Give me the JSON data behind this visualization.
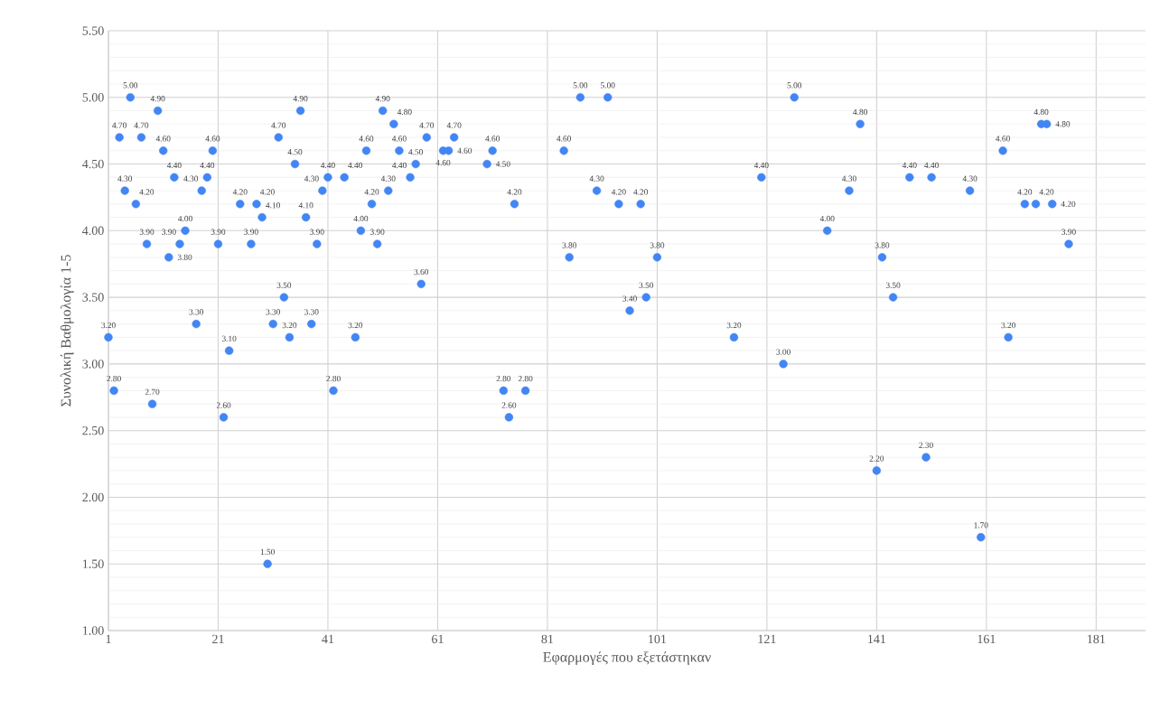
{
  "chart_data": {
    "type": "scatter",
    "xlabel": "Εφαρμογές που εξετάστηκαν",
    "ylabel": "Συνολική Βαθμολογία 1-5",
    "x": [
      1,
      2,
      3,
      4,
      5,
      6,
      7,
      8,
      9,
      10,
      11,
      12,
      13,
      14,
      15,
      17,
      18,
      19,
      20,
      21,
      22,
      23,
      25,
      27,
      28,
      29,
      30,
      31,
      32,
      33,
      34,
      35,
      36,
      37,
      38,
      39,
      40,
      41,
      42,
      44,
      46,
      47,
      48,
      49,
      50,
      51,
      52,
      53,
      54,
      56,
      57,
      58,
      59,
      62,
      63,
      64,
      70,
      71,
      73,
      74,
      75,
      77,
      84,
      85,
      87,
      90,
      92,
      94,
      96,
      98,
      99,
      101,
      115,
      120,
      124,
      126,
      132,
      136,
      138,
      141,
      142,
      144,
      147,
      150,
      151,
      158,
      160,
      164,
      165,
      168,
      170,
      171,
      172,
      173,
      176
    ],
    "values": [
      3.2,
      2.8,
      4.7,
      4.3,
      5.0,
      4.2,
      4.7,
      3.9,
      2.7,
      4.9,
      4.6,
      3.8,
      4.4,
      3.9,
      4.0,
      3.3,
      4.3,
      4.4,
      4.6,
      3.9,
      2.6,
      3.1,
      4.2,
      3.9,
      4.2,
      4.1,
      1.5,
      3.3,
      4.7,
      3.5,
      3.2,
      4.5,
      4.9,
      4.1,
      3.3,
      3.9,
      4.3,
      4.4,
      2.8,
      4.4,
      3.2,
      4.0,
      4.6,
      4.2,
      3.9,
      4.9,
      4.3,
      4.8,
      4.6,
      4.4,
      4.5,
      3.6,
      4.7,
      4.6,
      4.6,
      4.7,
      4.5,
      4.6,
      2.8,
      2.6,
      4.2,
      2.8,
      4.6,
      3.8,
      5.0,
      4.3,
      5.0,
      4.2,
      3.4,
      4.2,
      3.5,
      3.8,
      3.2,
      4.4,
      3.0,
      5.0,
      4.0,
      4.3,
      4.8,
      2.2,
      3.8,
      3.5,
      4.4,
      2.3,
      4.4,
      4.3,
      1.7,
      4.6,
      3.2,
      4.2,
      4.2,
      4.8,
      4.8,
      4.2,
      3.9
    ],
    "value_labels": [
      "3.20",
      "2.80",
      "4.70",
      "4.30",
      "5.00",
      "4.20",
      "4.70",
      "3.90",
      "2.70",
      "4.90",
      "4.60",
      "3.80",
      "4.40",
      "3.90",
      "4.00",
      "3.30",
      "4.30",
      "4.40",
      "4.60",
      "3.90",
      "2.60",
      "3.10",
      "4.20",
      "3.90",
      "4.20",
      "4.10",
      "1.50",
      "3.30",
      "4.70",
      "3.50",
      "3.20",
      "4.50",
      "4.90",
      "4.10",
      "3.30",
      "3.90",
      "4.30",
      "4.40",
      "2.80",
      "4.40",
      "3.20",
      "4.00",
      "4.60",
      "4.20",
      "3.90",
      "4.90",
      "4.30",
      "4.80",
      "4.60",
      "4.40",
      "4.50",
      "3.60",
      "4.70",
      "4.60",
      "4.60",
      "4.70",
      "4.50",
      "4.60",
      "2.80",
      "2.60",
      "4.20",
      "2.80",
      "4.60",
      "3.80",
      "5.00",
      "4.30",
      "5.00",
      "4.20",
      "3.40",
      "4.20",
      "3.50",
      "3.80",
      "3.20",
      "4.40",
      "3.00",
      "5.00",
      "4.00",
      "4.30",
      "4.80",
      "2.20",
      "3.80",
      "3.50",
      "4.40",
      "2.30",
      "4.40",
      "4.30",
      "1.70",
      "4.60",
      "3.20",
      "4.20",
      "4.20",
      "4.80",
      "4.80",
      "4.20",
      "3.90"
    ],
    "color": "#4285f4",
    "marker": "circle",
    "grid": true,
    "xlim": [
      1,
      190
    ],
    "xticks": [
      1,
      21,
      41,
      61,
      81,
      101,
      121,
      141,
      161,
      181
    ],
    "ylim": [
      1,
      5.5
    ],
    "yticks": [
      {
        "value": 1,
        "label": "1.00"
      },
      {
        "value": 1.5,
        "label": "1.50"
      },
      {
        "value": 2,
        "label": "2.00"
      },
      {
        "value": 2.5,
        "label": "2.50"
      },
      {
        "value": 3,
        "label": "3.00"
      },
      {
        "value": 3.5,
        "label": "3.50"
      },
      {
        "value": 4,
        "label": "4.00"
      },
      {
        "value": 4.5,
        "label": "4.50"
      },
      {
        "value": 5,
        "label": "5.00"
      },
      {
        "value": 5.5,
        "label": "5.50"
      }
    ]
  }
}
